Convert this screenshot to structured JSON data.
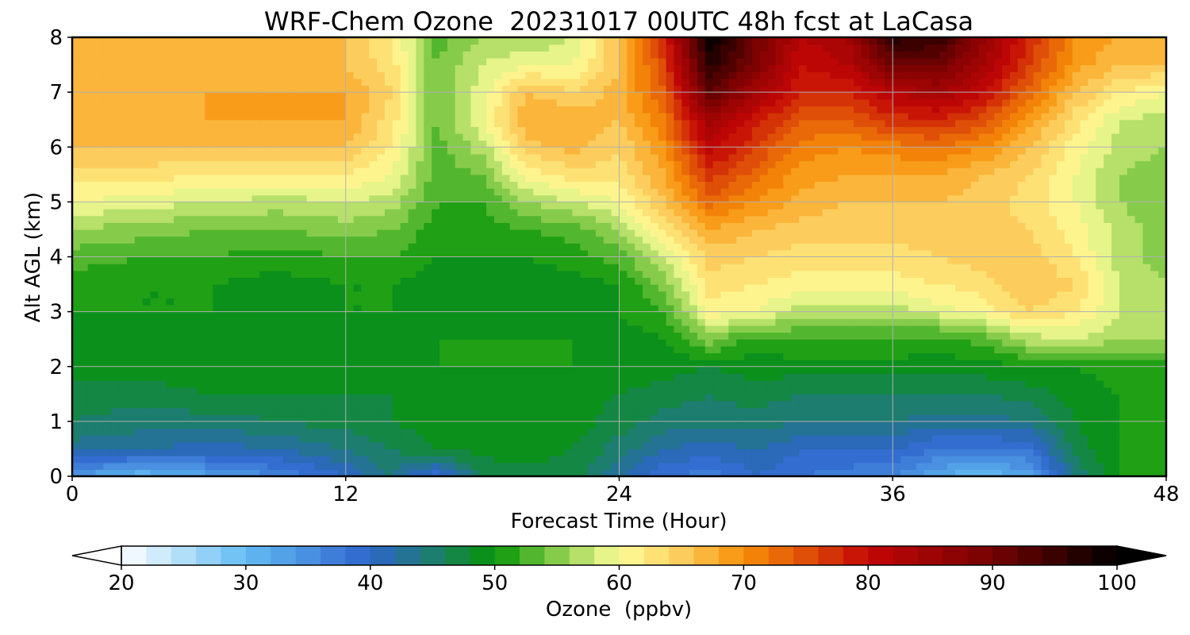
{
  "chart_data": {
    "type": "heatmap",
    "title": "WRF-Chem Ozone  20231017 00UTC 48h fcst at LaCasa",
    "xlabel": "Forecast Time (Hour)",
    "ylabel": "Alt AGL (km)",
    "xlim": [
      0,
      48
    ],
    "ylim": [
      0,
      8
    ],
    "xticks": [
      0,
      12,
      24,
      36,
      48
    ],
    "yticks": [
      0,
      1,
      2,
      3,
      4,
      5,
      6,
      7,
      8
    ],
    "grid": true,
    "x": [
      0,
      3,
      6,
      9,
      12,
      14,
      16,
      18,
      20,
      22,
      24,
      26,
      28,
      30,
      32,
      34,
      36,
      38,
      40,
      42,
      44,
      46,
      48
    ],
    "y": [
      0,
      0.5,
      1,
      1.5,
      2,
      2.5,
      3,
      3.5,
      4,
      4.5,
      5,
      5.5,
      6,
      6.5,
      7,
      7.5,
      8
    ],
    "z": [
      [
        34,
        30,
        33,
        36,
        40,
        44,
        38,
        46,
        47,
        47,
        42,
        38,
        37,
        40,
        38,
        37,
        36,
        32,
        30,
        33,
        44,
        50,
        50
      ],
      [
        43,
        42,
        41,
        42,
        44,
        46,
        48,
        49,
        49,
        48,
        45,
        42,
        41,
        42,
        40,
        40,
        40,
        38,
        38,
        38,
        47,
        50,
        50
      ],
      [
        46,
        45,
        45,
        46,
        47,
        48,
        49,
        50,
        49,
        49,
        47,
        45,
        45,
        45,
        44,
        44,
        44,
        43,
        43,
        44,
        48,
        50,
        50
      ],
      [
        47,
        47,
        48,
        48,
        48,
        48,
        49,
        49,
        49,
        49,
        48,
        47,
        46,
        47,
        46,
        46,
        46,
        46,
        46,
        47,
        49,
        50,
        50
      ],
      [
        49,
        49,
        49,
        49,
        49,
        49,
        50,
        50,
        50,
        50,
        49,
        49,
        48,
        49,
        49,
        49,
        49,
        49,
        49,
        50,
        50,
        51,
        51
      ],
      [
        49,
        49,
        49,
        49,
        49,
        49,
        50,
        50,
        50,
        50,
        49,
        50,
        55,
        51,
        52,
        52,
        52,
        51,
        53,
        57,
        58,
        56,
        56
      ],
      [
        50,
        50,
        50,
        49,
        50,
        50,
        49,
        49,
        49,
        49,
        50,
        52,
        61,
        60,
        57,
        57,
        57,
        59,
        61,
        64,
        62,
        58,
        56
      ],
      [
        51,
        50,
        50,
        49,
        50,
        50,
        49,
        49,
        49,
        49,
        50,
        55,
        63,
        62,
        61,
        61,
        61,
        62,
        63,
        66,
        64,
        58,
        56
      ],
      [
        53,
        52,
        52,
        51,
        52,
        52,
        50,
        50,
        50,
        51,
        53,
        58,
        65,
        64,
        63,
        63,
        63,
        64,
        65,
        65,
        62,
        57,
        55
      ],
      [
        56,
        55,
        54,
        54,
        55,
        54,
        51,
        51,
        52,
        53,
        56,
        62,
        68,
        66,
        65,
        65,
        65,
        65,
        65,
        64,
        61,
        57,
        55
      ],
      [
        60,
        59,
        58,
        57,
        58,
        57,
        52,
        52,
        56,
        58,
        60,
        66,
        73,
        70,
        67,
        66,
        66,
        66,
        65,
        63,
        60,
        56,
        54
      ],
      [
        63,
        63,
        62,
        62,
        62,
        60,
        53,
        54,
        61,
        63,
        63,
        68,
        77,
        73,
        69,
        68,
        68,
        68,
        66,
        64,
        60,
        56,
        55
      ],
      [
        66,
        66,
        66,
        66,
        66,
        62,
        53,
        57,
        65,
        67,
        64,
        70,
        81,
        76,
        71,
        70,
        71,
        72,
        70,
        66,
        61,
        57,
        56
      ],
      [
        67,
        67,
        68,
        68,
        68,
        63,
        54,
        60,
        68,
        68,
        66,
        72,
        85,
        79,
        74,
        74,
        77,
        78,
        75,
        69,
        63,
        58,
        57
      ],
      [
        68,
        68,
        68,
        68,
        68,
        64,
        54,
        59,
        66,
        64,
        67,
        74,
        92,
        84,
        78,
        78,
        82,
        84,
        80,
        73,
        66,
        62,
        60
      ],
      [
        68,
        67,
        67,
        67,
        66,
        63,
        54,
        58,
        60,
        60,
        66,
        76,
        97,
        89,
        80,
        82,
        90,
        90,
        84,
        76,
        69,
        66,
        66
      ],
      [
        68,
        67,
        67,
        66,
        66,
        62,
        53,
        56,
        56,
        58,
        66,
        78,
        100,
        90,
        82,
        84,
        97,
        96,
        86,
        78,
        70,
        68,
        68
      ]
    ],
    "colorbar": {
      "label": "Ozone  (ppbv)",
      "min": 20,
      "max": 100,
      "ticks": [
        20,
        30,
        40,
        50,
        60,
        70,
        80,
        90,
        100
      ],
      "extend": "both",
      "stops": [
        {
          "v": 20,
          "c": "#ffffff"
        },
        {
          "v": 30,
          "c": "#63bcf3"
        },
        {
          "v": 40,
          "c": "#2f64cc"
        },
        {
          "v": 45,
          "c": "#1d7d6f"
        },
        {
          "v": 50,
          "c": "#079507"
        },
        {
          "v": 55,
          "c": "#86cc4a"
        },
        {
          "v": 60,
          "c": "#fefe9a"
        },
        {
          "v": 65,
          "c": "#fccd5c"
        },
        {
          "v": 70,
          "c": "#f79008"
        },
        {
          "v": 75,
          "c": "#df4f08"
        },
        {
          "v": 80,
          "c": "#c40606"
        },
        {
          "v": 90,
          "c": "#750202"
        },
        {
          "v": 100,
          "c": "#000000"
        }
      ]
    }
  }
}
